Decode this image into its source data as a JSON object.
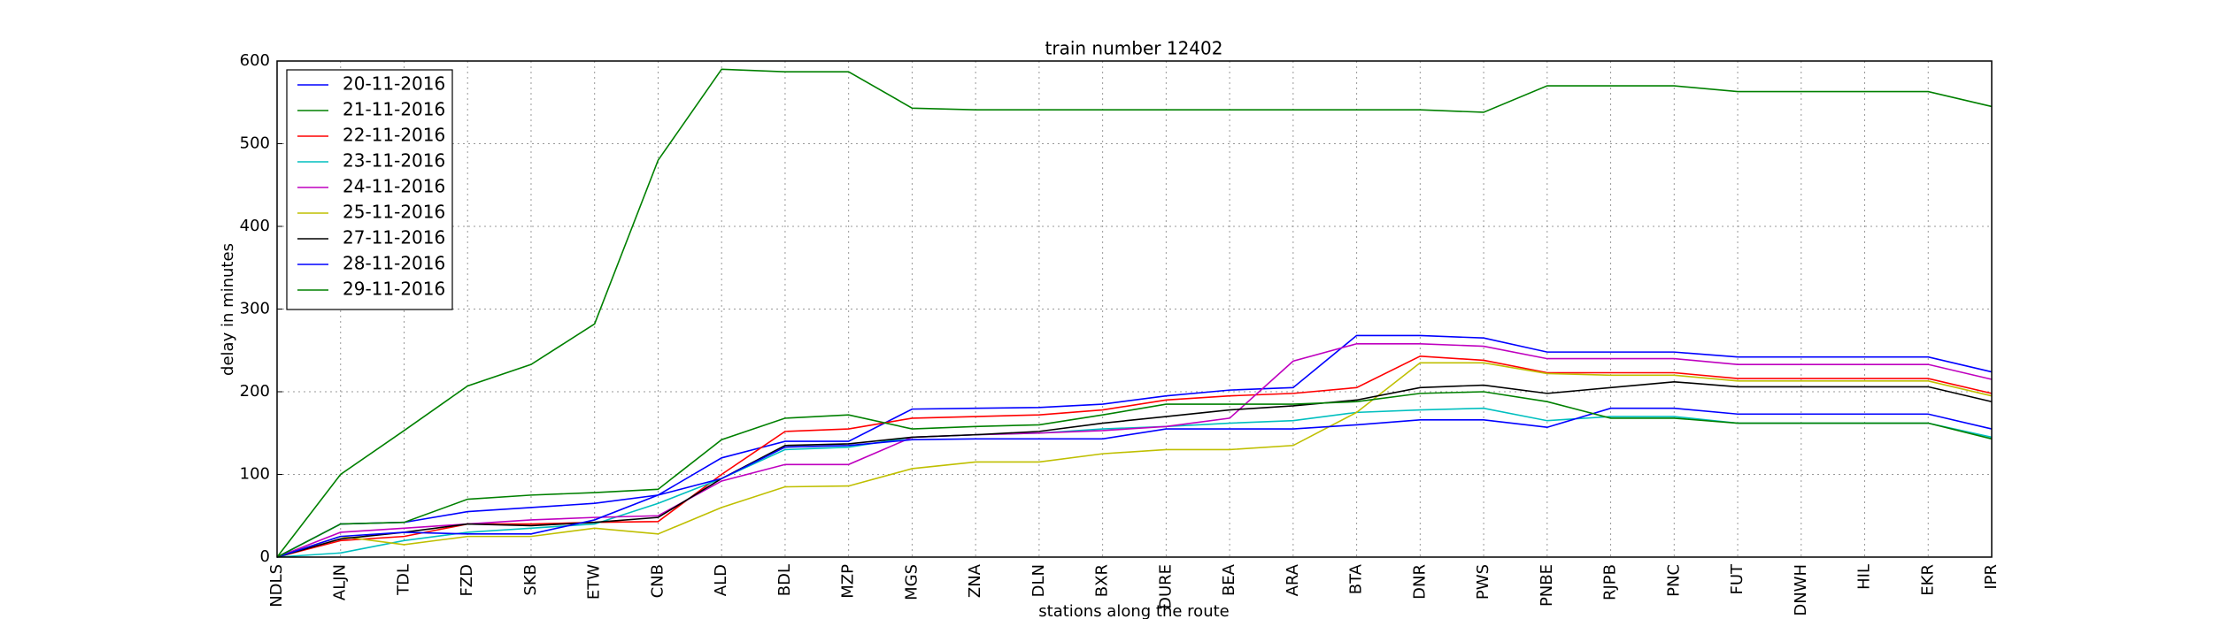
{
  "chart_data": {
    "type": "line",
    "title": "train number 12402",
    "x_label": "stations along the route",
    "y_label": "delay in minutes",
    "categories": [
      "NDLS",
      "ALJN",
      "TDL",
      "FZD",
      "SKB",
      "ETW",
      "CNB",
      "ALD",
      "BDL",
      "MZP",
      "MGS",
      "ZNA",
      "DLN",
      "BXR",
      "DURE",
      "BEA",
      "ARA",
      "BTA",
      "DNR",
      "PWS",
      "PNBE",
      "RJPB",
      "PNC",
      "FUT",
      "DNWH",
      "HIL",
      "EKR",
      "IPR"
    ],
    "ylim": [
      0,
      600
    ],
    "yticks": [
      0,
      100,
      200,
      300,
      400,
      500,
      600
    ],
    "grid": true,
    "legend": "upper left",
    "series": [
      {
        "name": "20-11-2016",
        "color": "#0000ff",
        "values": [
          0,
          40,
          42,
          55,
          60,
          65,
          75,
          120,
          140,
          140,
          179,
          180,
          181,
          185,
          195,
          202,
          205,
          268,
          268,
          265,
          248,
          248,
          248,
          242,
          242,
          242,
          242,
          224
        ]
      },
      {
        "name": "21-11-2016",
        "color": "#008000",
        "values": [
          0,
          100,
          153,
          207,
          233,
          282,
          480,
          590,
          587,
          587,
          543,
          541,
          541,
          541,
          541,
          541,
          541,
          541,
          541,
          538,
          570,
          570,
          570,
          563,
          563,
          563,
          563,
          545
        ]
      },
      {
        "name": "22-11-2016",
        "color": "#ff0000",
        "values": [
          0,
          20,
          25,
          40,
          40,
          42,
          43,
          100,
          152,
          155,
          168,
          170,
          172,
          178,
          190,
          195,
          198,
          205,
          243,
          238,
          223,
          223,
          223,
          216,
          216,
          216,
          216,
          198
        ]
      },
      {
        "name": "23-11-2016",
        "color": "#00bfbf",
        "values": [
          0,
          5,
          20,
          30,
          35,
          40,
          65,
          95,
          130,
          133,
          145,
          148,
          150,
          155,
          158,
          162,
          165,
          175,
          178,
          180,
          165,
          170,
          170,
          162,
          162,
          162,
          162,
          145
        ]
      },
      {
        "name": "24-11-2016",
        "color": "#bf00bf",
        "values": [
          0,
          30,
          35,
          40,
          45,
          48,
          50,
          92,
          112,
          112,
          145,
          148,
          150,
          153,
          158,
          168,
          237,
          258,
          258,
          255,
          240,
          240,
          240,
          233,
          233,
          233,
          233,
          215
        ]
      },
      {
        "name": "25-11-2016",
        "color": "#bfbf00",
        "values": [
          0,
          25,
          15,
          25,
          25,
          35,
          28,
          60,
          85,
          86,
          107,
          115,
          115,
          125,
          130,
          130,
          135,
          175,
          235,
          235,
          222,
          220,
          220,
          213,
          213,
          213,
          213,
          195
        ]
      },
      {
        "name": "27-11-2016",
        "color": "#000000",
        "values": [
          0,
          22,
          30,
          40,
          38,
          42,
          48,
          95,
          135,
          137,
          145,
          148,
          152,
          162,
          170,
          178,
          183,
          190,
          205,
          208,
          198,
          205,
          212,
          206,
          206,
          206,
          206,
          188
        ]
      },
      {
        "name": "28-11-2016",
        "color": "#0000ff",
        "values": [
          0,
          25,
          30,
          28,
          28,
          45,
          75,
          95,
          133,
          135,
          142,
          143,
          143,
          143,
          155,
          155,
          155,
          160,
          166,
          166,
          157,
          180,
          180,
          173,
          173,
          173,
          173,
          155
        ]
      },
      {
        "name": "29-11-2016",
        "color": "#008000",
        "values": [
          0,
          40,
          42,
          70,
          75,
          78,
          82,
          142,
          168,
          172,
          155,
          158,
          160,
          172,
          185,
          185,
          185,
          188,
          198,
          200,
          188,
          168,
          168,
          162,
          162,
          162,
          162,
          143
        ]
      }
    ]
  }
}
